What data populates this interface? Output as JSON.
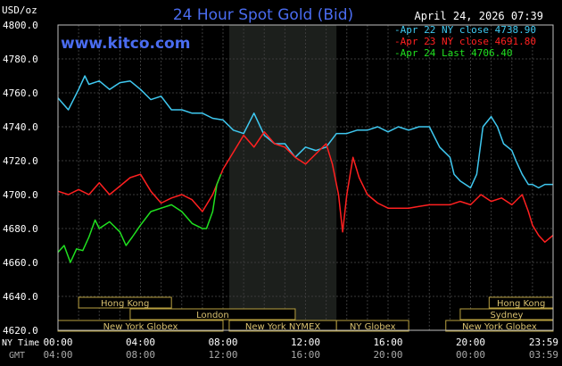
{
  "chart_data": {
    "type": "line",
    "title": "24 Hour Spot Gold (Bid)",
    "date_text": "April 24, 2026 07:39",
    "watermark": "www.kitco.com",
    "y_unit_label": "USD/oz",
    "ylim": [
      4620,
      4800
    ],
    "y_ticks": [
      "4800.0",
      "4780.0",
      "4760.0",
      "4740.0",
      "4720.0",
      "4700.0",
      "4680.0",
      "4660.0",
      "4640.0",
      "4620.0"
    ],
    "y_tick_values": [
      4800,
      4780,
      4760,
      4740,
      4720,
      4700,
      4680,
      4660,
      4640,
      4620
    ],
    "x_label_ny": "NY Time",
    "x_label_gmt": "GMT",
    "x_ticks_ny": [
      "00:00",
      "04:00",
      "08:00",
      "12:00",
      "16:00",
      "20:00",
      "23:59"
    ],
    "x_ticks_gmt": [
      "04:00",
      "08:00",
      "12:00",
      "16:00",
      "20:00",
      "00:00",
      "03:59"
    ],
    "x_tick_hours": [
      0,
      4,
      8,
      12,
      16,
      20,
      24
    ],
    "legend": [
      {
        "text": "Apr 22 NY close 4738.90",
        "color": "#3fc8f0"
      },
      {
        "text": "Apr 23 NY close 4691.80",
        "color": "#ff2020"
      },
      {
        "text": "Apr 24 Last 4706.40",
        "color": "#20e020"
      }
    ],
    "sessions": [
      {
        "label": "Hong Kong",
        "row": 0,
        "start": 1,
        "end": 5.5
      },
      {
        "label": "London",
        "row": 1,
        "start": 3.5,
        "end": 11.5
      },
      {
        "label": "New York Globex",
        "row": 2,
        "start": 0,
        "end": 8
      },
      {
        "label": "New York NYMEX",
        "row": 2,
        "start": 8.3,
        "end": 13.5
      },
      {
        "label": "NY Globex",
        "row": 2,
        "start": 13.5,
        "end": 17
      },
      {
        "label": "Hong Kong",
        "row": 0,
        "start": 20.9,
        "end": 24
      },
      {
        "label": "Sydney",
        "row": 1,
        "start": 19.5,
        "end": 24
      },
      {
        "label": "New York Globex",
        "row": 2,
        "start": 18.8,
        "end": 24
      }
    ],
    "shaded_hours": [
      8.3,
      13.5
    ],
    "series": [
      {
        "color": "#3fc8f0",
        "x": [
          0,
          0.5,
          1,
          1.3,
          1.5,
          2,
          2.5,
          3,
          3.5,
          4,
          4.5,
          5,
          5.5,
          6,
          6.5,
          7,
          7.5,
          8,
          8.5,
          9,
          9.5,
          10,
          10.5,
          11,
          11.5,
          12,
          12.5,
          13,
          13.5,
          14,
          14.5,
          15,
          15.5,
          16,
          16.5,
          17,
          17.5,
          18,
          18.5,
          19,
          19.2,
          19.5,
          20,
          20.3,
          20.6,
          21,
          21.3,
          21.6,
          22,
          22.2,
          22.5,
          22.8,
          23,
          23.3,
          23.6,
          24
        ],
        "values": [
          4757,
          4750,
          4762,
          4770,
          4765,
          4767,
          4762,
          4766,
          4767,
          4762,
          4756,
          4758,
          4750,
          4750,
          4748,
          4748,
          4745,
          4744,
          4738,
          4736,
          4748,
          4735,
          4730,
          4730,
          4722,
          4728,
          4726,
          4728,
          4736,
          4736,
          4738,
          4738,
          4740,
          4737,
          4740,
          4738,
          4740,
          4740,
          4728,
          4722,
          4712,
          4708,
          4704,
          4712,
          4740,
          4746,
          4740,
          4730,
          4726,
          4720,
          4712,
          4706,
          4706,
          4704,
          4706,
          4706
        ]
      },
      {
        "color": "#ff2020",
        "x": [
          0,
          0.5,
          1,
          1.5,
          2,
          2.5,
          3,
          3.5,
          4,
          4.5,
          5,
          5.5,
          6,
          6.5,
          7,
          7.5,
          8,
          8.5,
          9,
          9.5,
          10,
          10.5,
          11,
          11.5,
          12,
          12.5,
          13,
          13.3,
          13.6,
          13.8,
          14,
          14.3,
          14.6,
          15,
          15.5,
          16,
          16.5,
          17,
          17.5,
          18,
          18.5,
          19,
          19.5,
          20,
          20.5,
          21,
          21.5,
          22,
          22.5,
          22.8,
          23,
          23.3,
          23.6,
          24
        ],
        "values": [
          4702,
          4700,
          4703,
          4700,
          4707,
          4700,
          4705,
          4710,
          4712,
          4702,
          4695,
          4698,
          4700,
          4697,
          4690,
          4700,
          4715,
          4725,
          4735,
          4728,
          4737,
          4730,
          4728,
          4722,
          4718,
          4724,
          4730,
          4718,
          4700,
          4678,
          4700,
          4722,
          4710,
          4700,
          4695,
          4692,
          4692,
          4692,
          4693,
          4694,
          4694,
          4694,
          4696,
          4694,
          4700,
          4696,
          4698,
          4694,
          4700,
          4690,
          4682,
          4676,
          4672,
          4676
        ]
      },
      {
        "color": "#20e020",
        "x": [
          0,
          0.3,
          0.6,
          0.9,
          1.2,
          1.5,
          1.8,
          2,
          2.5,
          3,
          3.3,
          3.6,
          4,
          4.5,
          5,
          5.5,
          6,
          6.5,
          7,
          7.2,
          7.5,
          7.7,
          7.9
        ],
        "values": [
          4666,
          4670,
          4660,
          4668,
          4667,
          4675,
          4685,
          4680,
          4684,
          4678,
          4670,
          4675,
          4682,
          4690,
          4692,
          4694,
          4690,
          4683,
          4680,
          4680,
          4690,
          4706,
          4712
        ]
      }
    ]
  }
}
